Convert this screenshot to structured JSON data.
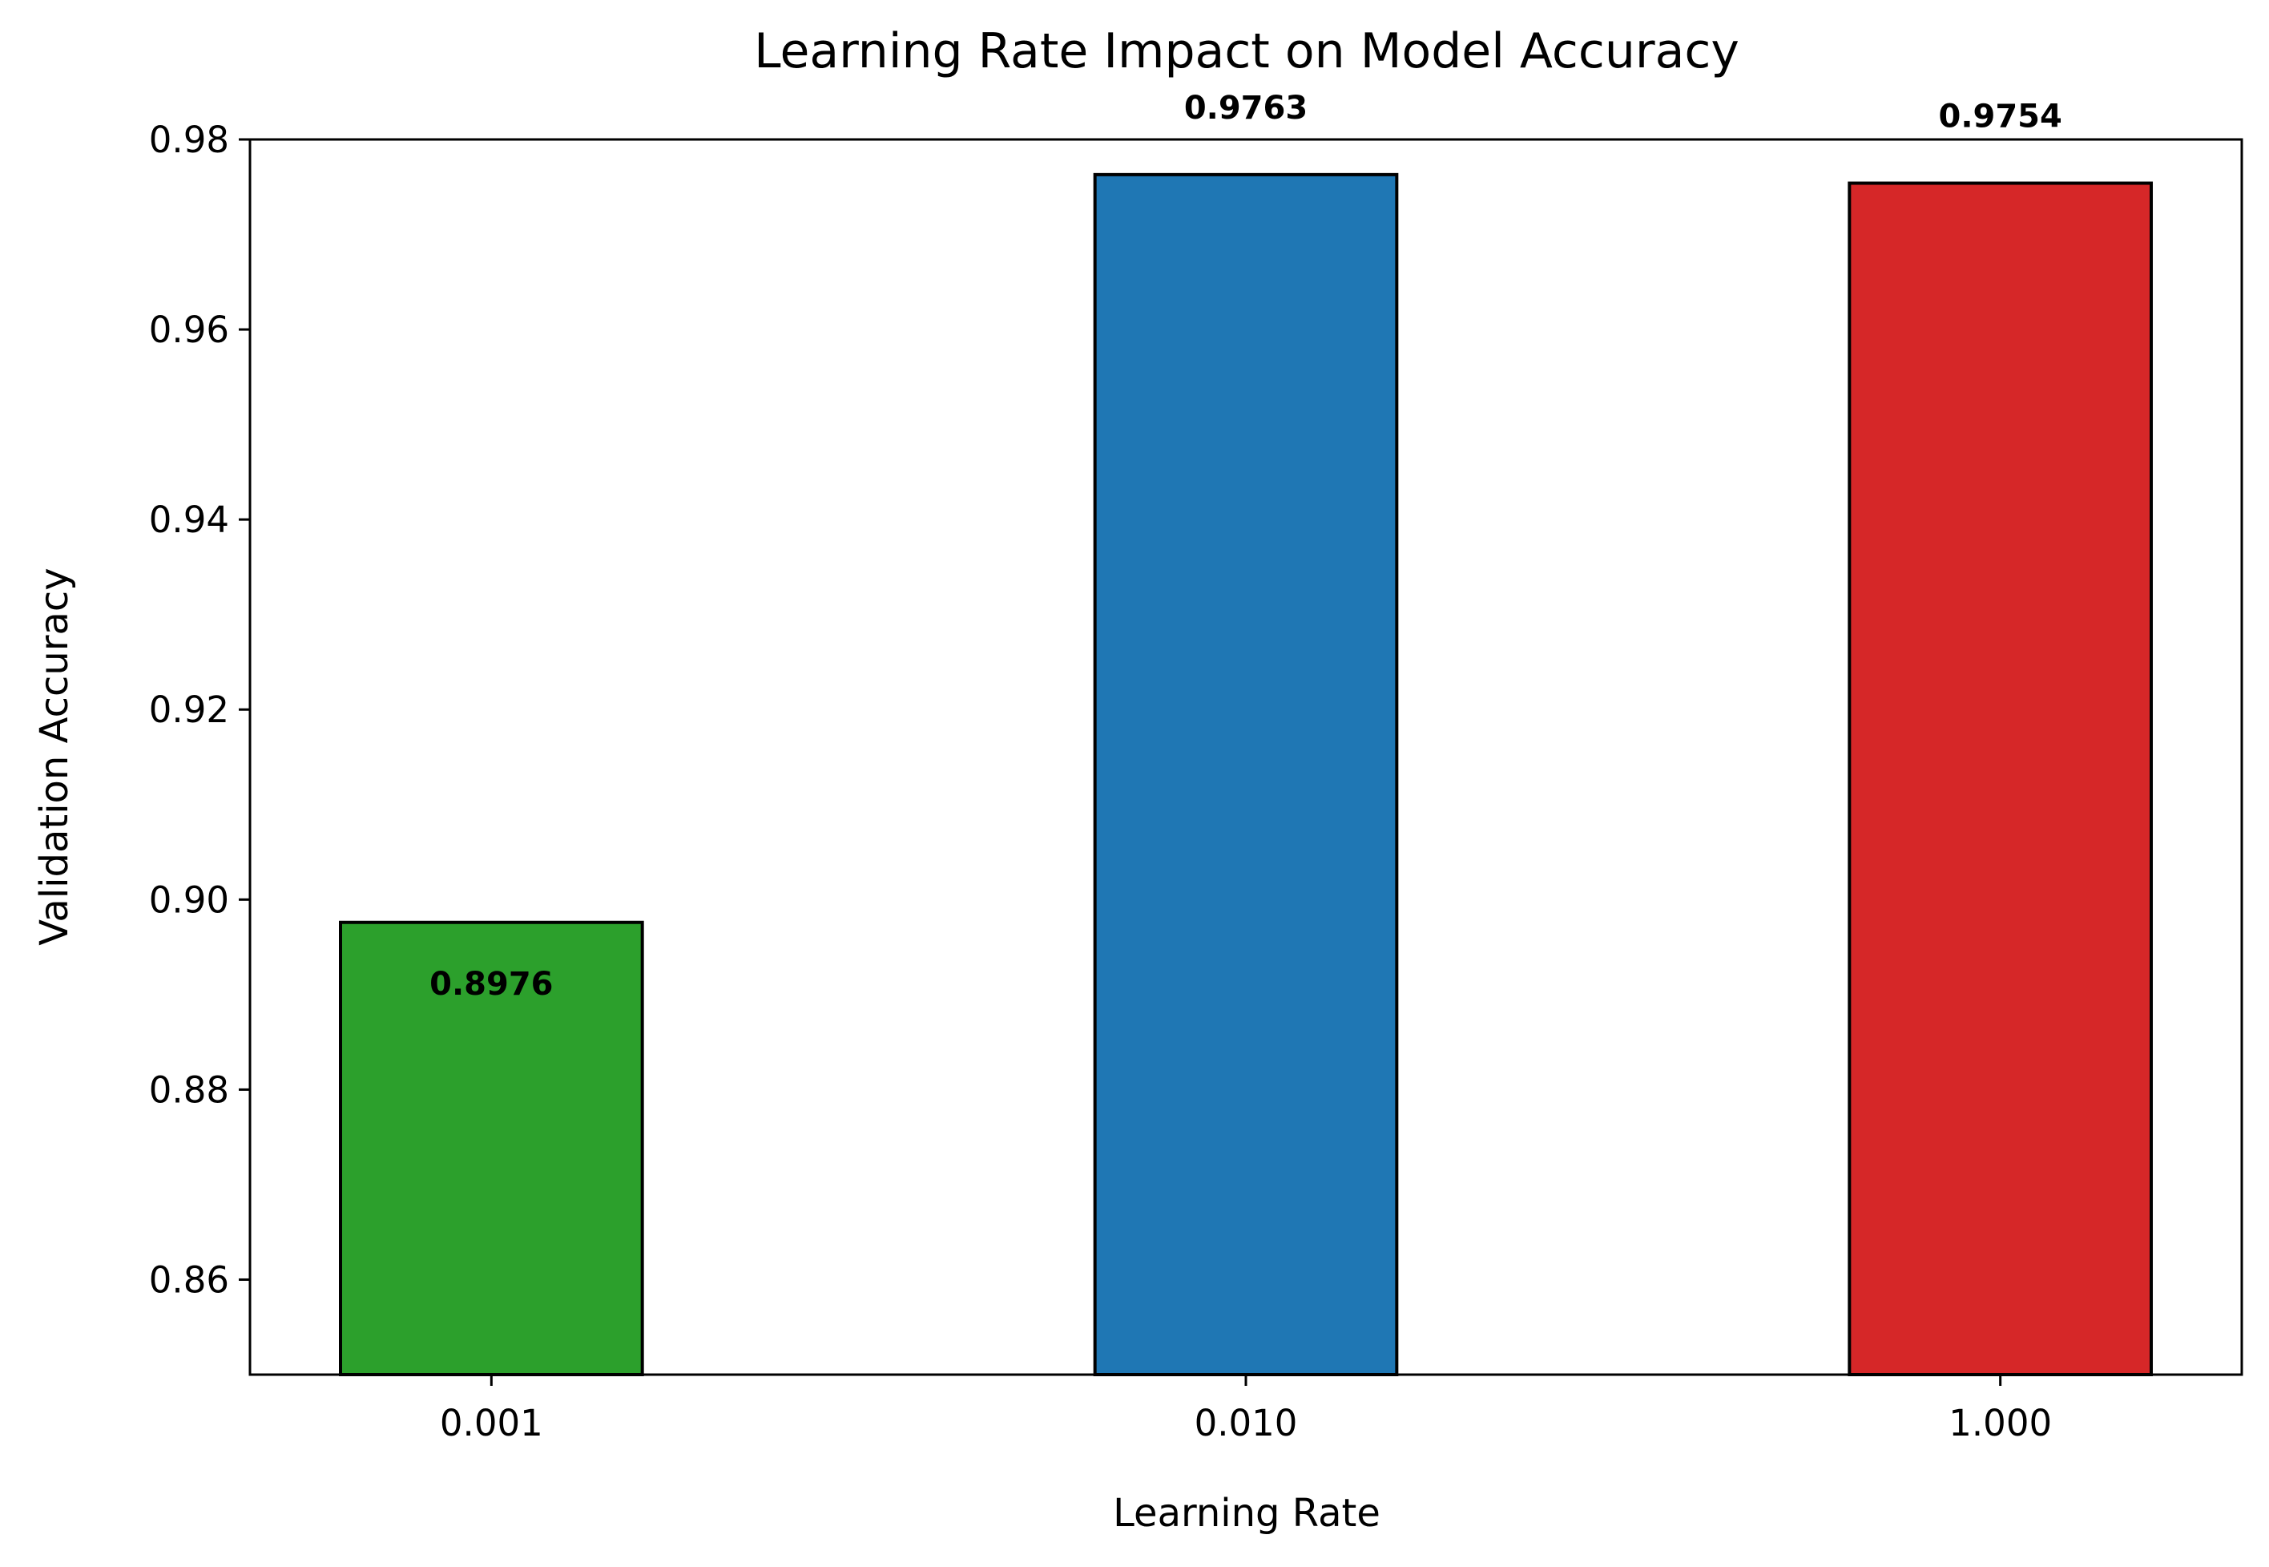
{
  "chart_data": {
    "type": "bar",
    "title": "Learning Rate Impact on Model Accuracy",
    "xlabel": "Learning Rate",
    "ylabel": "Validation Accuracy",
    "categories": [
      "0.001",
      "0.010",
      "1.000"
    ],
    "values": [
      0.8976,
      0.9763,
      0.9754
    ],
    "data_labels": [
      "0.8976",
      "0.9763",
      "0.9754"
    ],
    "colors": [
      "#2ca02c",
      "#1f77b4",
      "#d62728"
    ],
    "edge_color": "#000000",
    "ylim": [
      0.85,
      0.98
    ],
    "yticks": [
      0.86,
      0.88,
      0.9,
      0.92,
      0.94,
      0.96,
      0.98
    ],
    "ytick_labels": [
      "0.86",
      "0.88",
      "0.90",
      "0.92",
      "0.94",
      "0.96",
      "0.98"
    ],
    "grid": false,
    "legend": "none"
  }
}
